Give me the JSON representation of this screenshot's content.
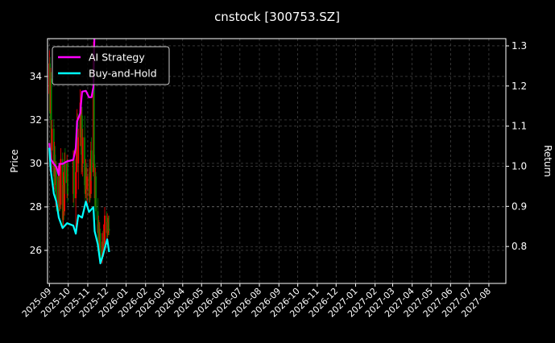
{
  "chart_data": {
    "type": "line",
    "title": "cnstock [300753.SZ]",
    "ylabel": "Price",
    "y2label": "Return",
    "xlim": [
      "2025-08-29",
      "2027-08-28"
    ],
    "ylim": [
      24.48,
      35.74
    ],
    "y2lim": [
      0.708,
      1.318
    ],
    "yticks": [
      26,
      28,
      30,
      32,
      34
    ],
    "y2ticks": [
      0.8,
      0.9,
      1.0,
      1.1,
      1.2,
      1.3
    ],
    "xticks": [
      "2025-09",
      "2025-10",
      "2025-11",
      "2025-12",
      "2026-01",
      "2026-02",
      "2026-03",
      "2026-04",
      "2026-05",
      "2026-06",
      "2026-07",
      "2026-08",
      "2026-09",
      "2026-10",
      "2026-11",
      "2026-12",
      "2027-01",
      "2027-02",
      "2027-03",
      "2027-04",
      "2027-05",
      "2027-06",
      "2027-07",
      "2027-08"
    ],
    "grid": true,
    "legend_position": "top-left",
    "colors": {
      "background": "#000000",
      "up": "#ff0000",
      "down": "#008000",
      "ai": "#ff00ff",
      "bh": "#00ffff",
      "grid": "#555555"
    },
    "candles": [
      [
        "2025-09-01",
        33.2,
        35.2,
        32.4,
        34.6
      ],
      [
        "2025-09-02",
        34.6,
        34.9,
        32.0,
        32.3
      ],
      [
        "2025-09-03",
        32.3,
        34.4,
        31.6,
        33.9
      ],
      [
        "2025-09-04",
        33.9,
        34.2,
        30.2,
        30.6
      ],
      [
        "2025-09-05",
        30.6,
        32.0,
        29.6,
        31.6
      ],
      [
        "2025-09-08",
        31.6,
        32.0,
        29.0,
        29.4
      ],
      [
        "2025-09-09",
        29.4,
        31.0,
        28.8,
        30.4
      ],
      [
        "2025-09-10",
        30.4,
        30.8,
        28.7,
        29.0
      ],
      [
        "2025-09-11",
        29.0,
        30.1,
        28.0,
        29.8
      ],
      [
        "2025-09-12",
        29.8,
        30.1,
        27.8,
        28.2
      ],
      [
        "2025-09-15",
        28.2,
        29.9,
        27.6,
        29.4
      ],
      [
        "2025-09-16",
        29.4,
        29.7,
        27.6,
        28.0
      ],
      [
        "2025-09-17",
        28.0,
        29.6,
        27.8,
        29.2
      ],
      [
        "2025-09-18",
        29.2,
        30.0,
        27.8,
        28.1
      ],
      [
        "2025-09-19",
        28.1,
        30.7,
        27.9,
        30.2
      ],
      [
        "2025-09-22",
        30.2,
        30.5,
        27.0,
        27.4
      ],
      [
        "2025-09-23",
        27.4,
        29.6,
        27.0,
        29.0
      ],
      [
        "2025-09-24",
        29.0,
        29.4,
        27.4,
        27.8
      ],
      [
        "2025-09-25",
        27.8,
        30.5,
        27.6,
        30.0
      ],
      [
        "2025-09-26",
        30.0,
        30.7,
        28.6,
        29.1
      ],
      [
        "2025-09-29",
        29.1,
        30.4,
        28.4,
        30.0
      ],
      [
        "2025-09-30",
        30.0,
        30.2,
        28.2,
        28.6
      ],
      [
        "2025-10-09",
        28.6,
        30.6,
        28.2,
        30.2
      ],
      [
        "2025-10-10",
        30.2,
        30.6,
        28.0,
        28.4
      ],
      [
        "2025-10-13",
        28.4,
        30.2,
        27.0,
        29.6
      ],
      [
        "2025-10-14",
        29.6,
        31.0,
        28.6,
        30.6
      ],
      [
        "2025-10-15",
        30.6,
        32.5,
        30.0,
        32.0
      ],
      [
        "2025-10-16",
        32.0,
        32.3,
        29.6,
        30.0
      ],
      [
        "2025-10-17",
        30.0,
        31.6,
        28.8,
        31.2
      ],
      [
        "2025-10-20",
        31.2,
        33.4,
        30.8,
        32.8
      ],
      [
        "2025-10-21",
        32.8,
        33.0,
        30.4,
        30.8
      ],
      [
        "2025-10-22",
        30.8,
        32.6,
        29.5,
        32.2
      ],
      [
        "2025-10-23",
        32.2,
        32.6,
        29.6,
        30.0
      ],
      [
        "2025-10-24",
        30.0,
        31.6,
        29.4,
        31.2
      ],
      [
        "2025-10-27",
        31.2,
        32.2,
        28.6,
        29.0
      ],
      [
        "2025-10-28",
        29.0,
        29.4,
        28.3,
        28.6
      ],
      [
        "2025-10-29",
        28.6,
        30.2,
        28.4,
        29.8
      ],
      [
        "2025-10-30",
        29.8,
        30.0,
        28.3,
        28.8
      ],
      [
        "2025-10-31",
        28.8,
        29.8,
        28.0,
        29.4
      ],
      [
        "2025-11-03",
        29.4,
        29.6,
        28.2,
        28.5
      ],
      [
        "2025-11-04",
        28.5,
        30.2,
        28.2,
        29.8
      ],
      [
        "2025-11-05",
        29.8,
        30.2,
        28.3,
        28.6
      ],
      [
        "2025-11-06",
        28.6,
        31.0,
        28.4,
        30.6
      ],
      [
        "2025-11-07",
        30.6,
        31.2,
        29.2,
        29.6
      ],
      [
        "2025-11-10",
        29.6,
        35.6,
        29.4,
        35.0
      ],
      [
        "2025-11-11",
        35.0,
        35.2,
        29.8,
        30.0
      ],
      [
        "2025-11-12",
        30.0,
        30.4,
        28.0,
        28.4
      ],
      [
        "2025-11-13",
        28.4,
        29.8,
        28.0,
        29.4
      ],
      [
        "2025-11-14",
        29.4,
        29.6,
        27.4,
        27.8
      ],
      [
        "2025-11-17",
        27.8,
        28.4,
        26.4,
        26.8
      ],
      [
        "2025-11-18",
        26.8,
        27.6,
        26.2,
        27.2
      ],
      [
        "2025-11-19",
        27.2,
        27.4,
        25.8,
        26.0
      ],
      [
        "2025-11-20",
        26.0,
        27.3,
        25.6,
        26.8
      ],
      [
        "2025-11-21",
        26.8,
        27.0,
        25.4,
        25.6
      ],
      [
        "2025-11-24",
        25.6,
        26.8,
        25.4,
        26.4
      ],
      [
        "2025-11-25",
        26.4,
        26.6,
        25.6,
        25.8
      ],
      [
        "2025-11-26",
        25.8,
        27.2,
        25.7,
        26.9
      ],
      [
        "2025-11-27",
        26.9,
        27.0,
        26.0,
        26.3
      ],
      [
        "2025-11-28",
        26.3,
        28.0,
        26.2,
        27.6
      ],
      [
        "2025-12-01",
        27.6,
        27.8,
        26.6,
        26.8
      ],
      [
        "2025-12-02",
        26.8,
        27.7,
        26.5,
        27.3
      ],
      [
        "2025-12-03",
        27.3,
        27.5,
        26.6,
        26.8
      ],
      [
        "2025-12-04",
        26.8,
        27.6,
        26.7,
        27.0
      ],
      [
        "2025-12-05",
        27.0,
        27.6,
        26.7,
        26.9
      ]
    ],
    "series": [
      {
        "name": "AI Strategy",
        "color": "#ff00ff",
        "axis": "right",
        "x": [
          "2025-09-01",
          "2025-09-03",
          "2025-09-08",
          "2025-09-12",
          "2025-09-16",
          "2025-09-17",
          "2025-09-22",
          "2025-09-29",
          "2025-10-09",
          "2025-10-13",
          "2025-10-15",
          "2025-10-20",
          "2025-10-23",
          "2025-10-29",
          "2025-11-03",
          "2025-11-07",
          "2025-11-10",
          "2025-11-11",
          "2025-11-12"
        ],
        "values": [
          1.058,
          1.018,
          1.006,
          0.998,
          0.978,
          1.006,
          1.006,
          1.012,
          1.016,
          1.046,
          1.112,
          1.132,
          1.186,
          1.188,
          1.172,
          1.172,
          1.198,
          1.29,
          1.34
        ]
      },
      {
        "name": "Buy-and-Hold",
        "color": "#00ffff",
        "axis": "right",
        "x": [
          "2025-09-01",
          "2025-09-03",
          "2025-09-08",
          "2025-09-12",
          "2025-09-16",
          "2025-09-22",
          "2025-09-29",
          "2025-10-09",
          "2025-10-13",
          "2025-10-17",
          "2025-10-23",
          "2025-10-29",
          "2025-11-03",
          "2025-11-10",
          "2025-11-12",
          "2025-11-17",
          "2025-11-21",
          "2025-11-25",
          "2025-12-02",
          "2025-12-05"
        ],
        "values": [
          1.046,
          0.992,
          0.932,
          0.912,
          0.872,
          0.846,
          0.858,
          0.852,
          0.832,
          0.878,
          0.872,
          0.912,
          0.886,
          0.898,
          0.838,
          0.806,
          0.758,
          0.778,
          0.818,
          0.786
        ]
      }
    ]
  }
}
